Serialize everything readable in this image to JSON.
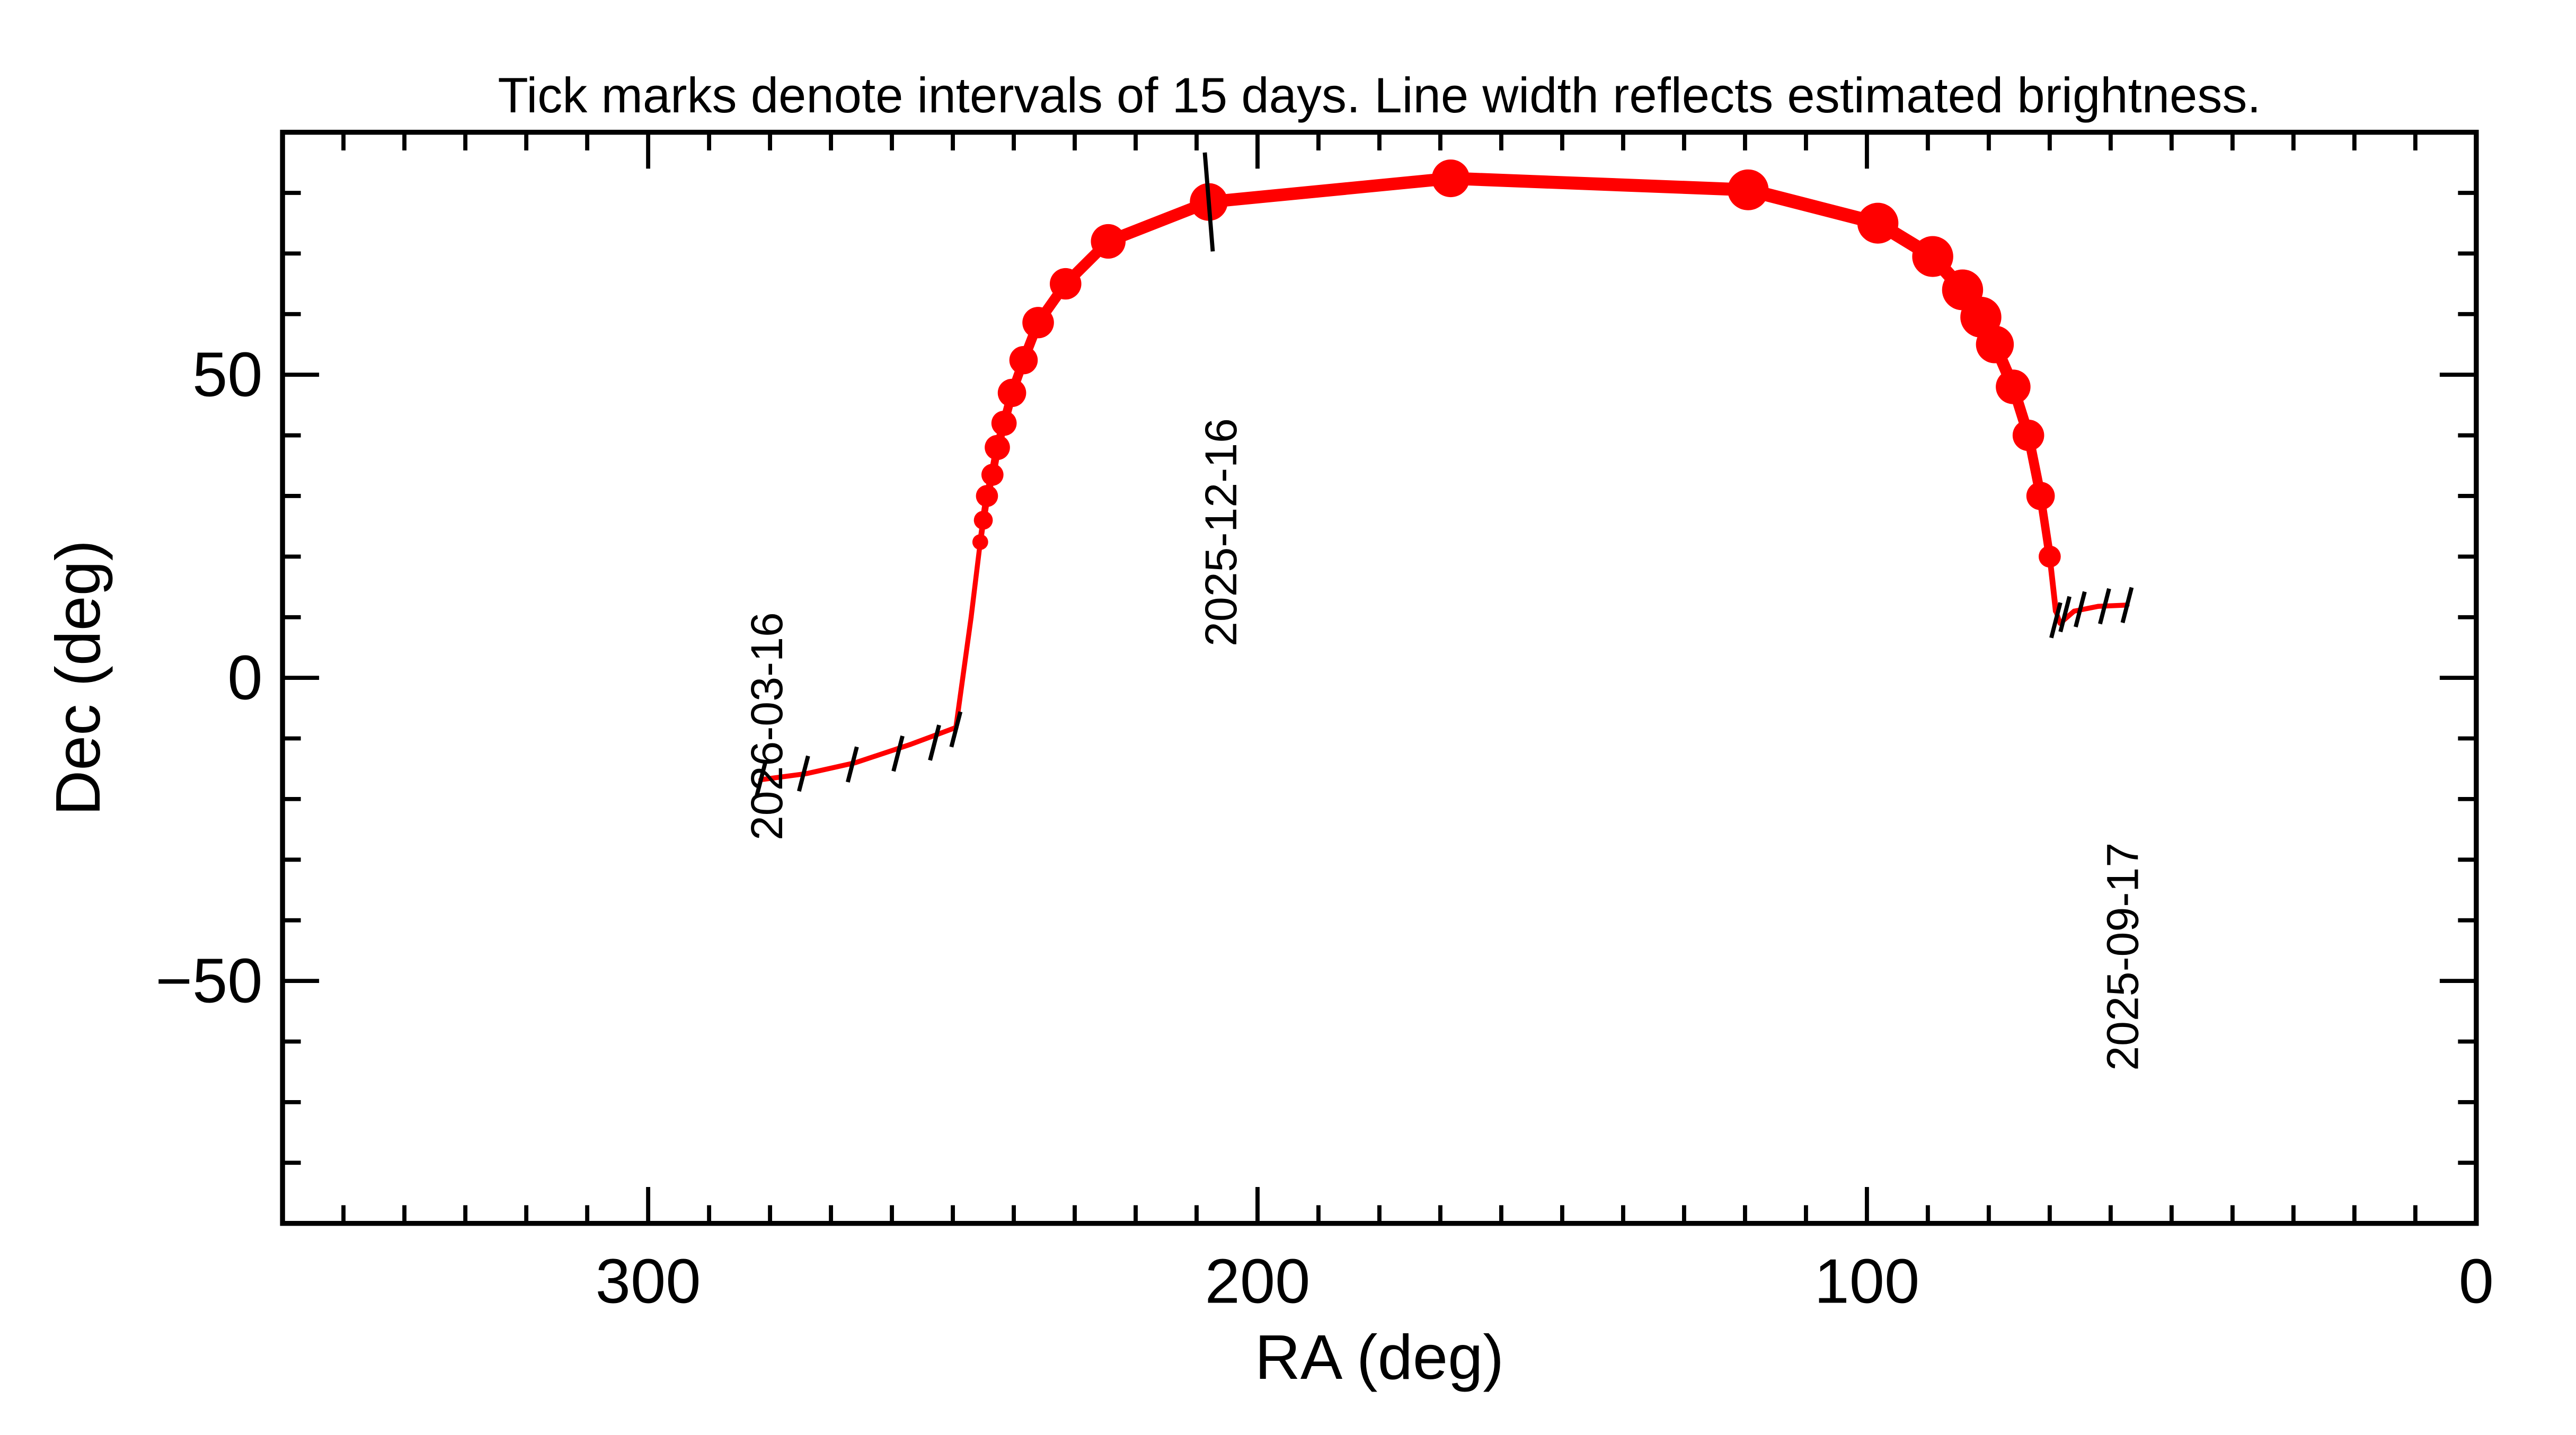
{
  "chart_data": {
    "type": "line",
    "title": "Tick marks denote intervals of 15 days.  Line width reflects estimated brightness.",
    "xlabel": "RA (deg)",
    "ylabel": "Dec (deg)",
    "xlim": [
      360,
      0
    ],
    "ylim": [
      -90,
      90
    ],
    "xticks": [
      300,
      200,
      100,
      0
    ],
    "xtick_labels": [
      "300",
      "200",
      "100",
      "0"
    ],
    "yticks": [
      50,
      0,
      -50
    ],
    "ytick_labels": [
      "50",
      "0",
      "−50"
    ],
    "grid": false,
    "track_color": "#ff0000",
    "track": [
      {
        "ra": 57.3,
        "dec": 12.0,
        "brightness": 1
      },
      {
        "ra": 62.0,
        "dec": 11.8,
        "brightness": 1
      },
      {
        "ra": 66.0,
        "dec": 11.0,
        "brightness": 1.2
      },
      {
        "ra": 68.3,
        "dec": 9.0,
        "brightness": 1.5
      },
      {
        "ra": 69.0,
        "dec": 11.0,
        "brightness": 4
      },
      {
        "ra": 70.0,
        "dec": 20.0,
        "brightness": 7
      },
      {
        "ra": 71.5,
        "dec": 30.0,
        "brightness": 9
      },
      {
        "ra": 73.5,
        "dec": 40.0,
        "brightness": 10
      },
      {
        "ra": 76.0,
        "dec": 48.0,
        "brightness": 11
      },
      {
        "ra": 79.0,
        "dec": 55.0,
        "brightness": 12
      },
      {
        "ra": 81.3,
        "dec": 59.5,
        "brightness": 13
      },
      {
        "ra": 84.3,
        "dec": 64.0,
        "brightness": 13
      },
      {
        "ra": 89.2,
        "dec": 69.5,
        "brightness": 13
      },
      {
        "ra": 98.2,
        "dec": 75.0,
        "brightness": 13
      },
      {
        "ra": 119.5,
        "dec": 80.5,
        "brightness": 13
      },
      {
        "ra": 168.3,
        "dec": 82.4,
        "brightness": 12
      },
      {
        "ra": 208.0,
        "dec": 78.5,
        "brightness": 12
      },
      {
        "ra": 224.5,
        "dec": 72.0,
        "brightness": 11
      },
      {
        "ra": 231.5,
        "dec": 65.0,
        "brightness": 10
      },
      {
        "ra": 236.0,
        "dec": 58.6,
        "brightness": 10
      },
      {
        "ra": 238.4,
        "dec": 52.4,
        "brightness": 9
      },
      {
        "ra": 240.3,
        "dec": 47.0,
        "brightness": 9
      },
      {
        "ra": 241.6,
        "dec": 42.0,
        "brightness": 8
      },
      {
        "ra": 242.7,
        "dec": 38.0,
        "brightness": 8
      },
      {
        "ra": 243.5,
        "dec": 33.5,
        "brightness": 7
      },
      {
        "ra": 244.4,
        "dec": 30.0,
        "brightness": 7
      },
      {
        "ra": 245.0,
        "dec": 26.0,
        "brightness": 6
      },
      {
        "ra": 245.5,
        "dec": 22.4,
        "brightness": 5
      },
      {
        "ra": 247.0,
        "dec": 10.0,
        "brightness": 3
      },
      {
        "ra": 249.5,
        "dec": -8.2,
        "brightness": 2
      },
      {
        "ra": 257.0,
        "dec": -11.0,
        "brightness": 1.5
      },
      {
        "ra": 266.0,
        "dec": -14.0,
        "brightness": 1.5
      },
      {
        "ra": 274.0,
        "dec": -15.8,
        "brightness": 1.5
      },
      {
        "ra": 281.5,
        "dec": -16.8,
        "brightness": 1.5
      }
    ],
    "interval_ticks": [
      {
        "ra": 281.5,
        "dec": -16.8
      },
      {
        "ra": 274.5,
        "dec": -15.8
      },
      {
        "ra": 266.5,
        "dec": -14.3
      },
      {
        "ra": 259.0,
        "dec": -12.5
      },
      {
        "ra": 253.0,
        "dec": -10.7
      },
      {
        "ra": 249.5,
        "dec": -8.5
      },
      {
        "ra": 208.0,
        "dec": 78.5
      },
      {
        "ra": 69.0,
        "dec": 9.5
      },
      {
        "ra": 67.5,
        "dec": 10.5
      },
      {
        "ra": 65.0,
        "dec": 11.3
      },
      {
        "ra": 61.0,
        "dec": 11.8
      },
      {
        "ra": 57.3,
        "dec": 12.0
      }
    ],
    "date_labels": [
      {
        "text": "2026-03-16",
        "ra": 278,
        "dec": -8
      },
      {
        "text": "2025-12-16",
        "ra": 203.5,
        "dec": 24
      },
      {
        "text": "2025-09-17",
        "ra": 55.5,
        "dec": -46
      }
    ]
  }
}
